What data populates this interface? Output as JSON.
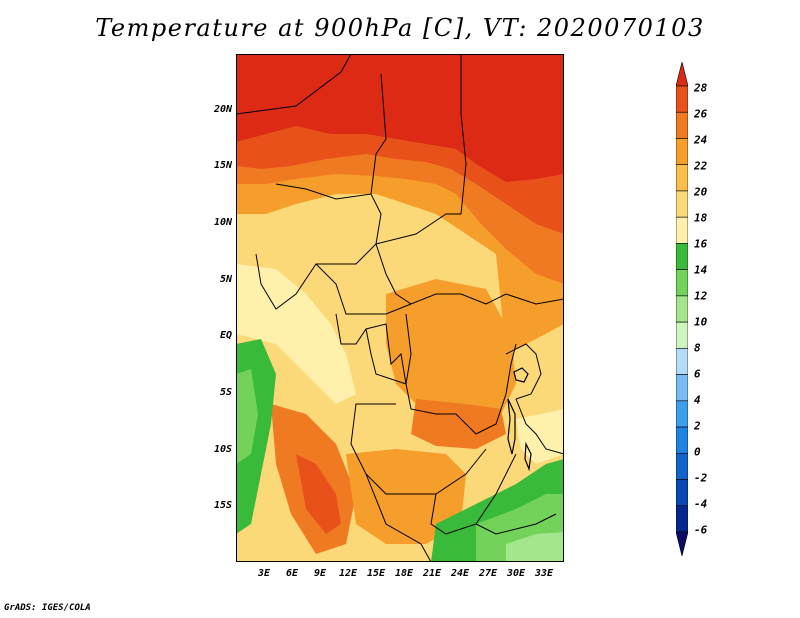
{
  "title": "Temperature at 900hPa [C], VT: 2020070103",
  "footer": "GrADS: IGES/COLA",
  "y_axis": {
    "labels": [
      "20N",
      "15N",
      "10N",
      "5N",
      "EQ",
      "5S",
      "10S",
      "15S"
    ]
  },
  "x_axis": {
    "labels": [
      "3E",
      "6E",
      "9E",
      "12E",
      "15E",
      "18E",
      "21E",
      "24E",
      "27E",
      "30E",
      "33E"
    ]
  },
  "colorbar": {
    "labels": [
      "28",
      "26",
      "24",
      "22",
      "20",
      "18",
      "16",
      "14",
      "12",
      "10",
      "8",
      "6",
      "4",
      "2",
      "0",
      "-2",
      "-4",
      "-6"
    ],
    "colors": [
      "#dc2a14",
      "#e8521a",
      "#f07a22",
      "#f59e2c",
      "#fabe4a",
      "#fcd978",
      "#fff0ac",
      "#3aba3a",
      "#72d25a",
      "#a4e68c",
      "#cdf5c0",
      "#b4dcf6",
      "#78bcf2",
      "#3ca0ec",
      "#1e82e0",
      "#1064cc",
      "#0a46b4",
      "#06288c",
      "#0c0c64"
    ]
  },
  "map_colors": {
    "t27": "#dc2a14",
    "t25": "#e8521a",
    "t23": "#f07a22",
    "t21": "#f59e2c",
    "t19": "#fabe4a",
    "t17": "#fcd978",
    "t15": "#fff0ac",
    "t13": "#3aba3a",
    "t11": "#72d25a",
    "t9": "#a4e68c",
    "t7": "#cdf5c0"
  }
}
